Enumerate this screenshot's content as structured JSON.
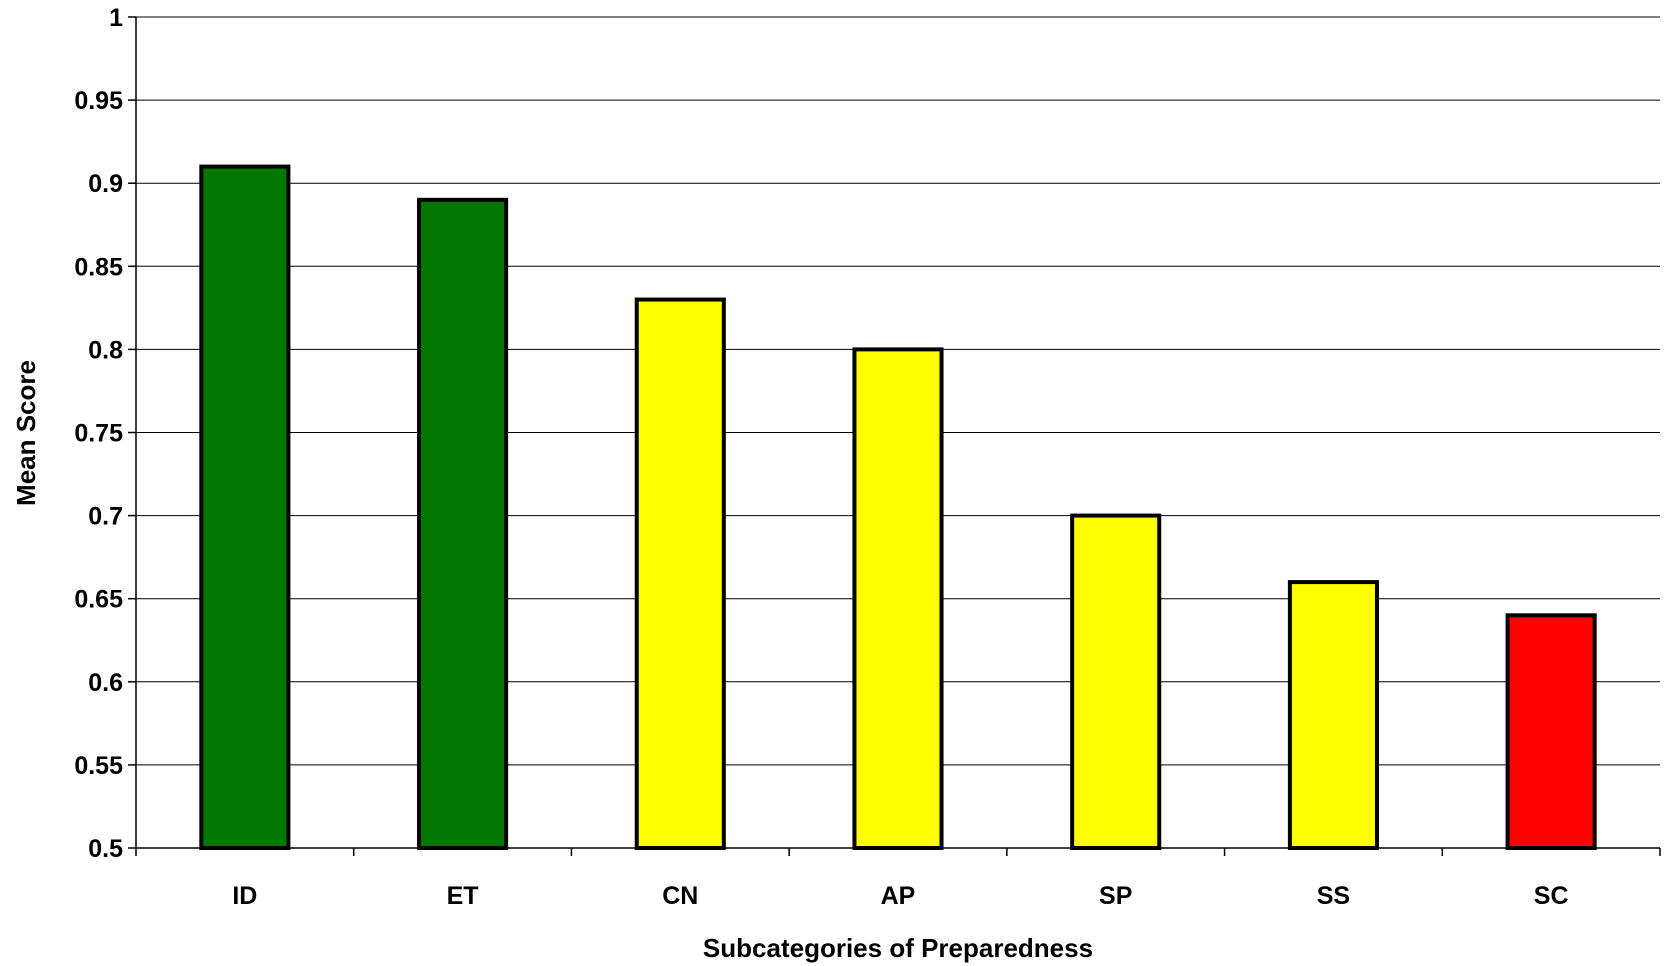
{
  "chart_data": {
    "type": "bar",
    "title": "",
    "xlabel": "Subcategories of Preparedness",
    "ylabel": "Mean Score",
    "categories": [
      "ID",
      "ET",
      "CN",
      "AP",
      "SP",
      "SS",
      "SC"
    ],
    "values": [
      0.91,
      0.89,
      0.83,
      0.8,
      0.7,
      0.66,
      0.64
    ],
    "bar_colors": [
      "#007700",
      "#007700",
      "#ffff00",
      "#ffff00",
      "#ffff00",
      "#ffff00",
      "#ff0000"
    ],
    "ylim": [
      0.5,
      1
    ],
    "yticks": [
      "0.5",
      "0.55",
      "0.6",
      "0.65",
      "0.7",
      "0.75",
      "0.8",
      "0.85",
      "0.9",
      "0.95",
      "1"
    ],
    "grid": true,
    "legend": "none"
  }
}
